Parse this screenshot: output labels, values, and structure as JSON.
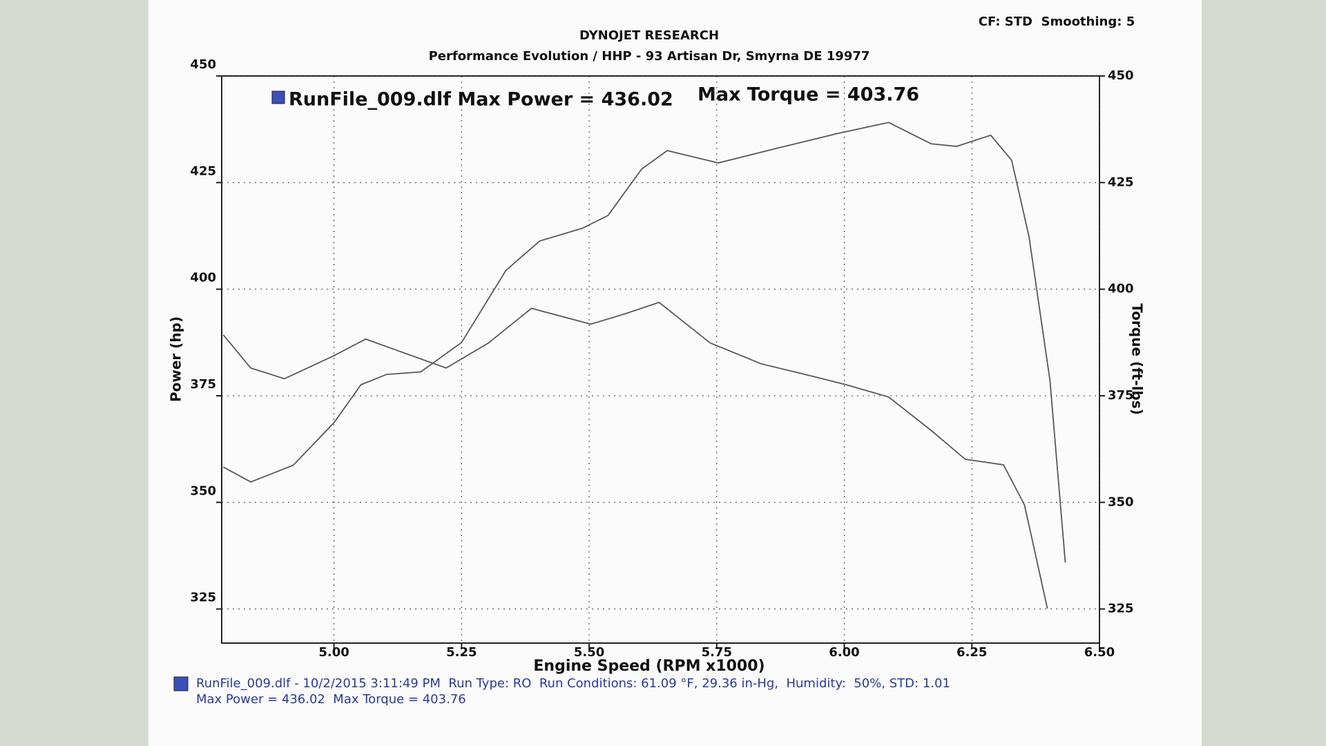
{
  "chart_data": {
    "type": "line",
    "title": "DYNOJET RESEARCH",
    "subtitle": "Performance Evolution / HHP - 93 Artisan Dr, Smyrna DE 19977",
    "corner_note": "CF: STD  Smoothing: 5",
    "legend_text": [
      "RunFile_009.dlf Max Power = 436.02",
      "Max Torque = 403.76"
    ],
    "legend_color": "#3b4fb8",
    "x_label": "Engine Speed (RPM x1000)",
    "y_label": "Power (hp)",
    "y2_label": "Torque (ft-lbs)",
    "xlim": [
      4.78,
      6.5
    ],
    "xticks": [
      {
        "value": 5,
        "label": "5.00"
      },
      5.25,
      {
        "value": 5.5,
        "label": "5.50"
      },
      5.75,
      {
        "value": 6,
        "label": "6.00"
      },
      6.25,
      {
        "value": 6.5,
        "label": "6.50"
      }
    ],
    "ylim": [
      317,
      450
    ],
    "yticks": [
      325,
      350,
      375,
      400,
      425,
      450
    ],
    "y2lim": [
      317,
      450
    ],
    "y2ticks": [
      325,
      350,
      375,
      400,
      425,
      450
    ],
    "grid": true,
    "series": [
      {
        "color": "#55585f",
        "x": [
          4.783,
          4.837,
          4.92,
          5.0,
          5.053,
          5.103,
          5.17,
          5.25,
          5.337,
          5.403,
          5.487,
          5.537,
          5.603,
          5.653,
          5.753,
          5.87,
          5.987,
          6.087,
          6.17,
          6.22,
          6.287,
          6.328,
          6.362,
          6.403,
          6.433
        ],
        "values": [
          358.3,
          354.8,
          358.7,
          368.7,
          377.6,
          380,
          380.6,
          387.5,
          404.4,
          411.3,
          414.3,
          417.3,
          428.2,
          432.5,
          429.6,
          433.1,
          436.5,
          439.1,
          434.1,
          433.5,
          436.1,
          430.2,
          412.3,
          378.6,
          335.9
        ]
      },
      {
        "color": "#55585f",
        "axis": "y2",
        "x": [
          4.783,
          4.837,
          4.903,
          5.0,
          5.062,
          5.12,
          5.22,
          5.303,
          5.387,
          5.503,
          5.57,
          5.637,
          5.737,
          5.837,
          5.937,
          6.003,
          6.087,
          6.17,
          6.237,
          6.312,
          6.353,
          6.398
        ],
        "values": [
          389.3,
          381.5,
          379,
          384.4,
          388.3,
          385.8,
          381.5,
          387.4,
          395.5,
          391.8,
          394.2,
          396.9,
          387.4,
          382.5,
          379.6,
          377.6,
          374.7,
          366.9,
          360.1,
          358.8,
          349.4,
          325.1
        ]
      }
    ],
    "footer_lines": [
      "RunFile_009.dlf - 10/2/2015 3:11:49 PM  Run Type: RO  Run Conditions: 61.09 °F, 29.36 in-Hg,  Humidity:  50%, STD: 1.01",
      "Max Power = 436.02  Max Torque = 403.76"
    ],
    "footer_color": "#2b3a9a"
  }
}
